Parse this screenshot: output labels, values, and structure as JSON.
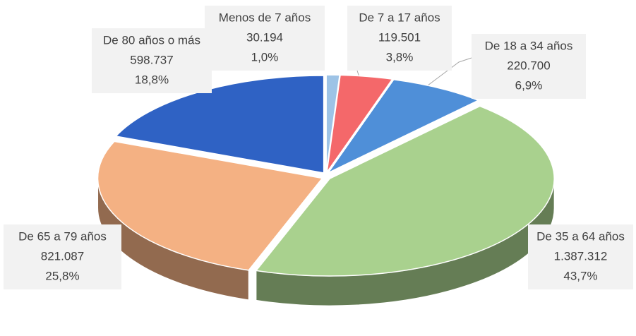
{
  "chart_data": {
    "type": "pie3d",
    "categories": [
      "Menos de 7 años",
      "De 7 a 17 años",
      "De 18 a 34 años",
      "De 35 a 64 años",
      "De 65 a 79 años",
      "De 80 años o más"
    ],
    "values": [
      30194,
      119501,
      220700,
      1387312,
      821087,
      598737
    ],
    "value_labels": [
      "30.194",
      "119.501",
      "220.700",
      "1.387.312",
      "821.087",
      "598.737"
    ],
    "percentages": [
      1.0,
      3.8,
      6.9,
      43.7,
      25.8,
      18.8
    ],
    "percentage_labels": [
      "1,0%",
      "3,8%",
      "6,9%",
      "43,7%",
      "25,8%",
      "18,8%"
    ],
    "colors": [
      "#9dc3e6",
      "#f4686a",
      "#4f8fd8",
      "#a9d18e",
      "#f4b183",
      "#2f62c4"
    ]
  }
}
